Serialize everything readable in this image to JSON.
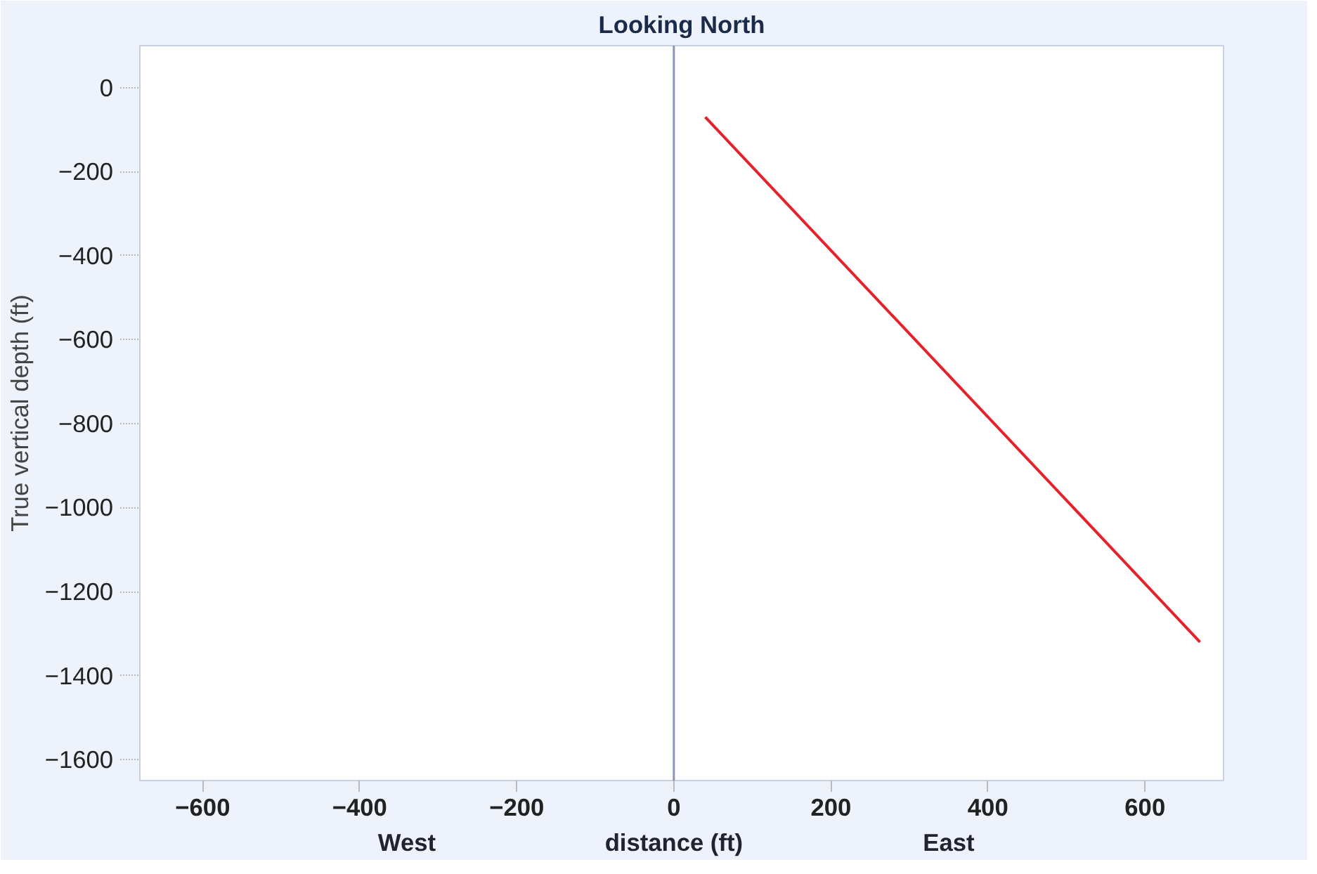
{
  "chart_data": {
    "type": "line",
    "title": "Looking North",
    "xlabel": "distance (ft)",
    "ylabel": "True vertical depth (ft)",
    "annotations": [
      "West",
      "East"
    ],
    "x": [
      40,
      670
    ],
    "series": [
      {
        "color": "#e8202a",
        "values": [
          -70,
          -1320
        ]
      }
    ],
    "xlim": [
      -680,
      700
    ],
    "ylim": [
      -1650,
      100
    ],
    "xticks": [
      -600,
      -400,
      -200,
      0,
      200,
      400,
      600
    ],
    "yticks": [
      0,
      -200,
      -400,
      -600,
      -800,
      -1000,
      -1200,
      -1400,
      -1600
    ],
    "ref_lines": [
      {
        "axis": "x",
        "value": 0,
        "color": "#8a93b8"
      }
    ],
    "grid": false
  }
}
